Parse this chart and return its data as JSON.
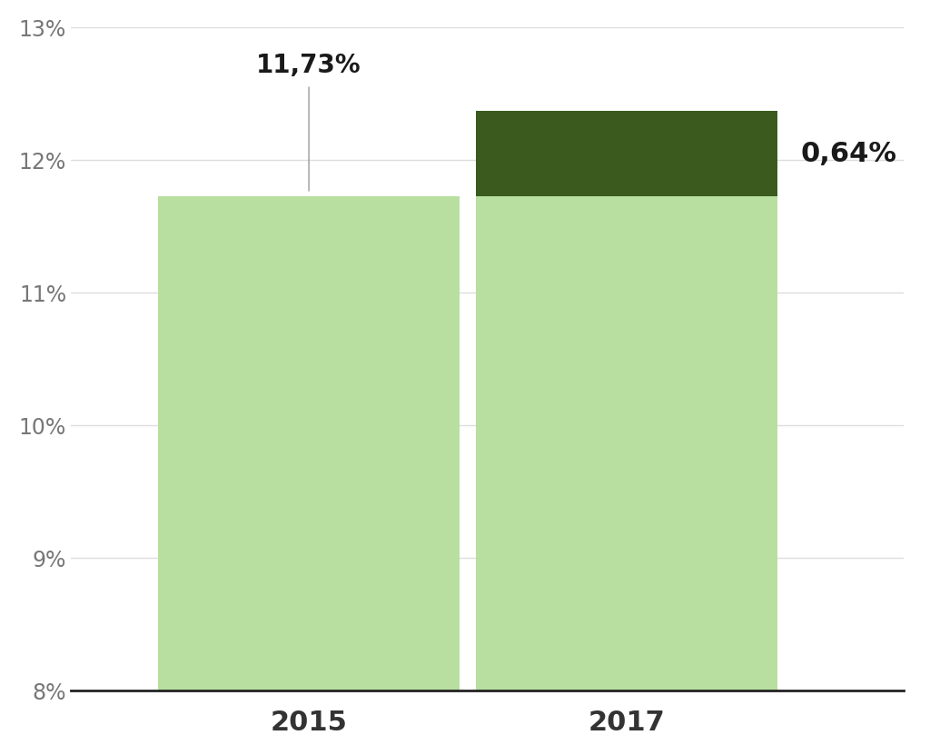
{
  "categories": [
    "2015",
    "2017"
  ],
  "base_values": [
    11.73,
    11.73
  ],
  "increment_values": [
    0,
    0.64
  ],
  "bar_color_light": "#b8dfa0",
  "bar_color_dark": "#3a5a1e",
  "bar_width": 0.38,
  "ylim_min": 8,
  "ylim_max": 13,
  "yticks": [
    8,
    9,
    10,
    11,
    12,
    13
  ],
  "ytick_labels": [
    "8%",
    "9%",
    "10%",
    "11%",
    "12%",
    "13%"
  ],
  "label_2015": "11,73%",
  "label_2017_increment": "0,64%",
  "label_fontsize": 20,
  "tick_fontsize": 17,
  "xticklabels_fontsize": 22,
  "background_color": "#ffffff",
  "gridcolor": "#dddddd",
  "bar_positions": [
    0.3,
    0.7
  ],
  "xlim": [
    0.0,
    1.05
  ],
  "annotation_line_color": "#999999",
  "label_text_color": "#1a1a1a"
}
